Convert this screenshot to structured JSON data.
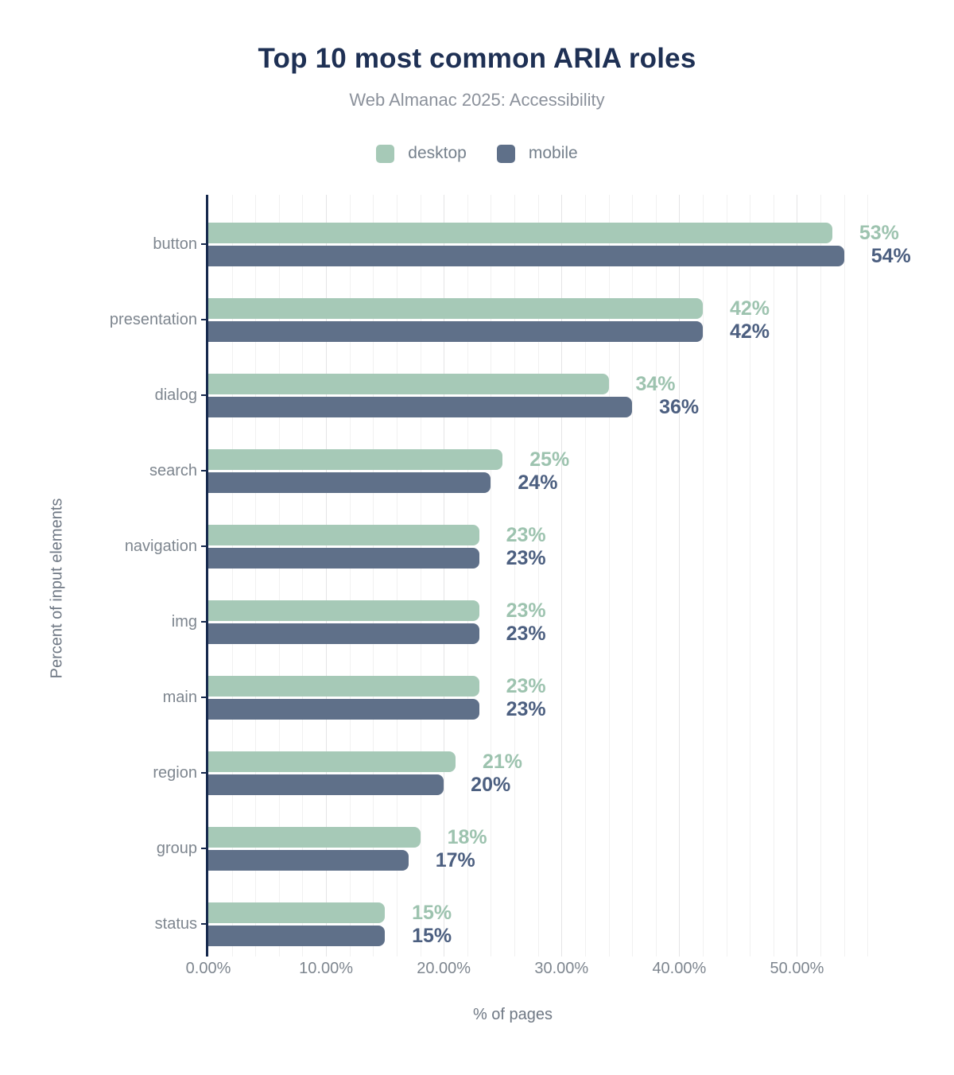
{
  "header": {
    "title": "Top 10 most common ARIA roles",
    "subtitle": "Web Almanac 2025: Accessibility"
  },
  "legend": {
    "items": [
      {
        "label": "desktop",
        "color": "#a6c9b7"
      },
      {
        "label": "mobile",
        "color": "#5f7089"
      }
    ]
  },
  "axes": {
    "x_label": "% of pages",
    "y_label": "Percent of input elements",
    "x_tick_labels": [
      "0.00%",
      "10.00%",
      "20.00%",
      "30.00%",
      "40.00%",
      "50.00%"
    ],
    "x_tick_values": [
      0,
      10,
      20,
      30,
      40,
      50
    ]
  },
  "colors": {
    "title": "#1e3054",
    "subtitle": "#8b919b",
    "axis_line": "#16294d",
    "tick_text": "#7e868f",
    "desktop": "#a6c9b7",
    "mobile": "#5f7089",
    "desktop_label": "#9dc3af",
    "mobile_label": "#4c5f80"
  },
  "chart_data": {
    "type": "bar",
    "orientation": "horizontal",
    "title": "Top 10 most common ARIA roles",
    "subtitle": "Web Almanac 2025: Accessibility",
    "xlabel": "% of pages",
    "ylabel": "Percent of input elements",
    "xlim": [
      0,
      57.6
    ],
    "grid": true,
    "grid_minor_step_pct": 2,
    "grid_major_step_pct": 10,
    "legend_position": "top",
    "categories": [
      "button",
      "presentation",
      "dialog",
      "search",
      "navigation",
      "img",
      "main",
      "region",
      "group",
      "status"
    ],
    "series": [
      {
        "name": "desktop",
        "color": "#a6c9b7",
        "label_color": "#9dc3af",
        "values": [
          53,
          42,
          34,
          25,
          23,
          23,
          23,
          21,
          18,
          15
        ],
        "labels": [
          "53%",
          "42%",
          "34%",
          "25%",
          "23%",
          "23%",
          "23%",
          "21%",
          "18%",
          "15%"
        ]
      },
      {
        "name": "mobile",
        "color": "#5f7089",
        "label_color": "#4c5f80",
        "values": [
          54,
          42,
          36,
          24,
          23,
          23,
          23,
          20,
          17,
          15
        ],
        "labels": [
          "54%",
          "42%",
          "36%",
          "24%",
          "23%",
          "23%",
          "23%",
          "20%",
          "17%",
          "15%"
        ]
      }
    ]
  }
}
